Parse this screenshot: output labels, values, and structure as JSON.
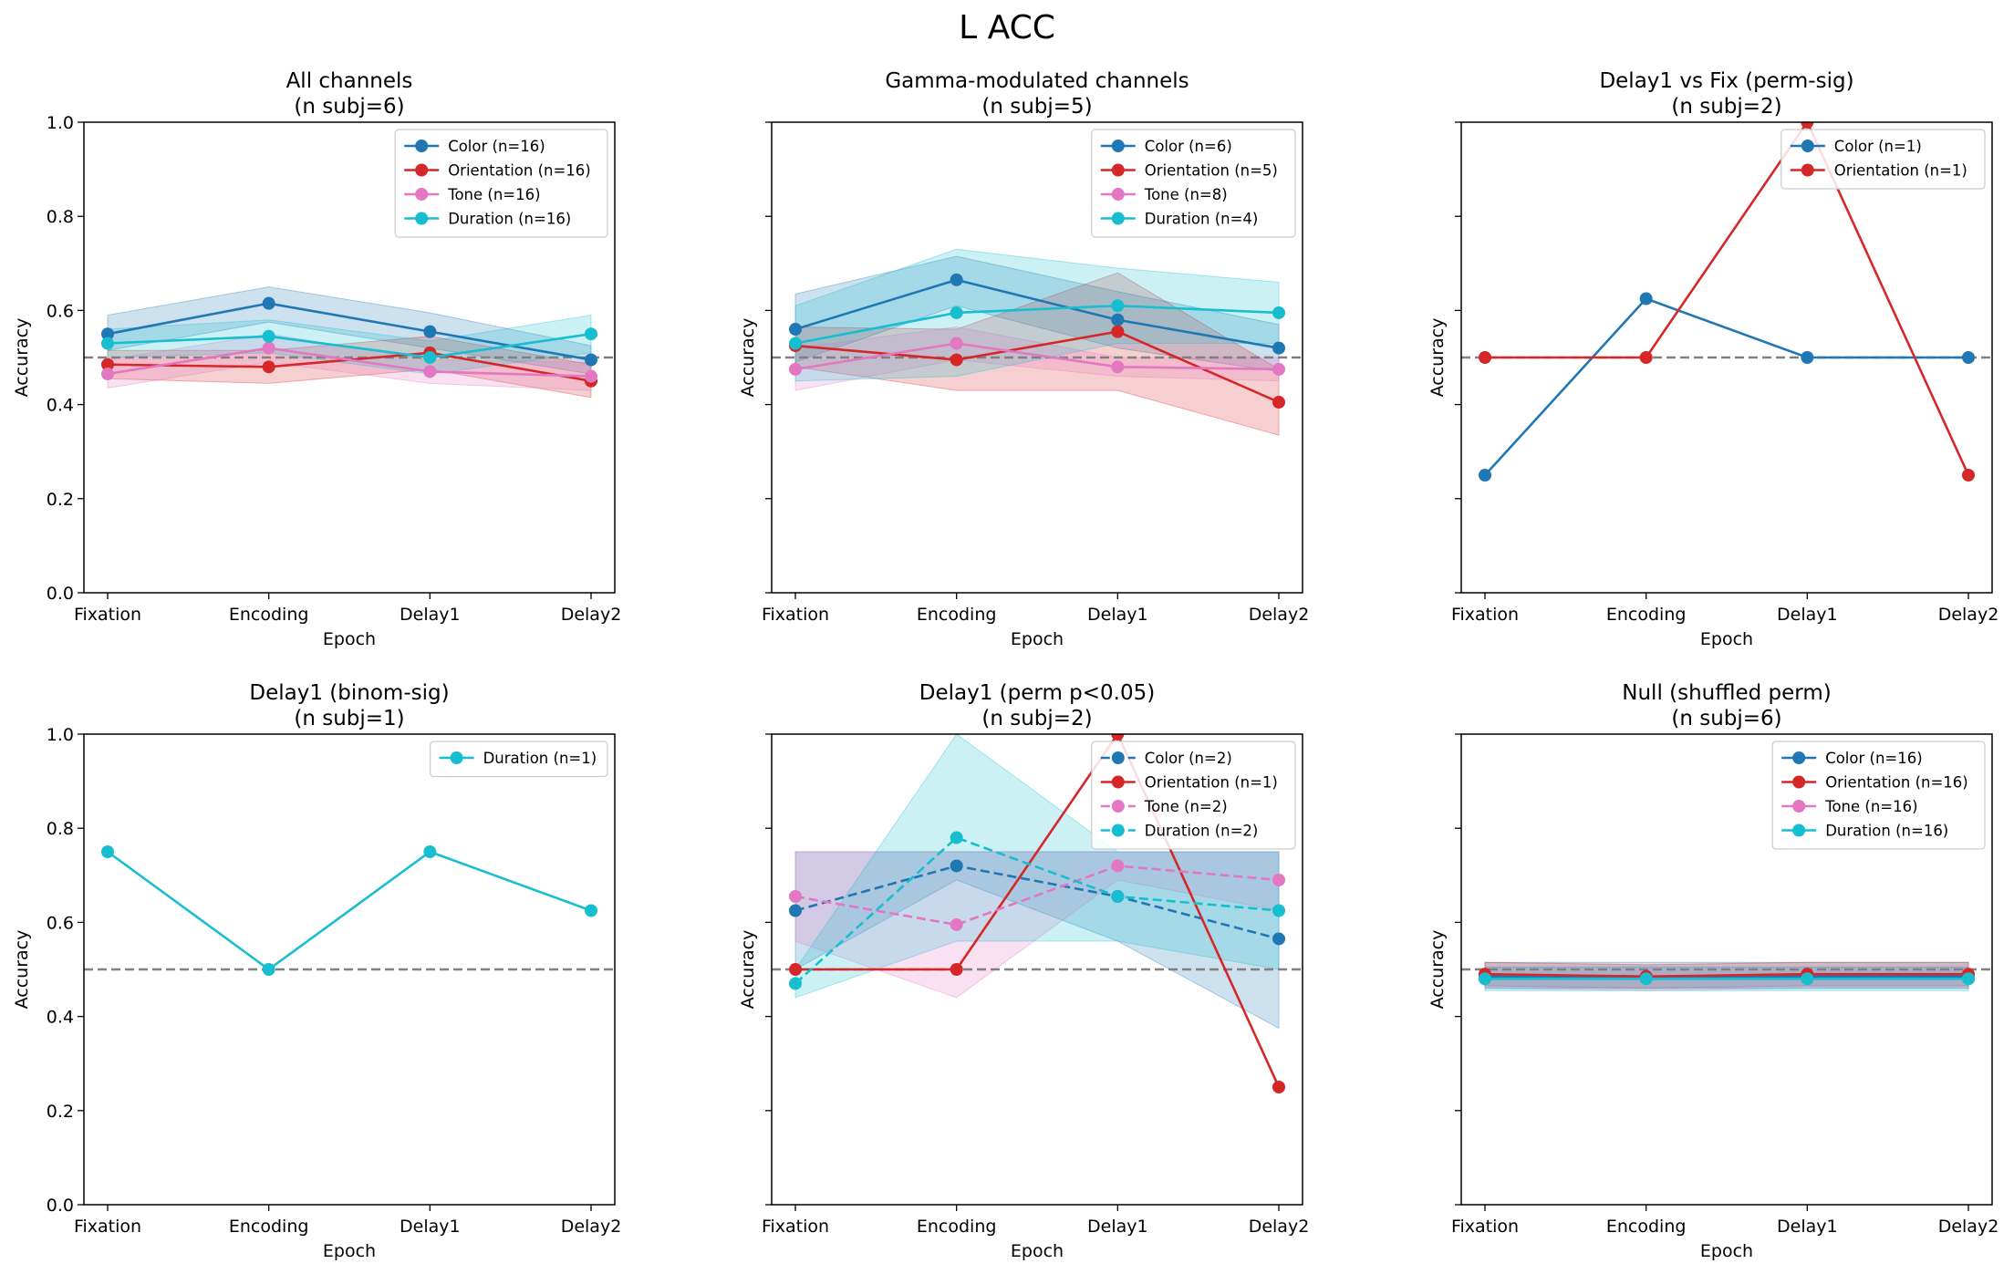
{
  "figure": {
    "suptitle": "L ACC",
    "epochs": [
      "Fixation",
      "Encoding",
      "Delay1",
      "Delay2"
    ],
    "xlabel": "Epoch",
    "ylabel": "Accuracy",
    "ylim": [
      0,
      1.0
    ],
    "yticks": [
      "0.0",
      "0.2",
      "0.4",
      "0.6",
      "0.8",
      "1.0"
    ],
    "chance_level": 0.5,
    "colors": {
      "Color": "#1f77b4",
      "Orientation": "#d62728",
      "Tone": "#e377c2",
      "Duration": "#17becf",
      "chance_line": "#808080"
    }
  },
  "chart_data": [
    {
      "type": "line",
      "title": "All channels",
      "subtitle": "(n subj=6)",
      "legend_position": "top-right",
      "categories": [
        "Fixation",
        "Encoding",
        "Delay1",
        "Delay2"
      ],
      "ylim": [
        0,
        1.0
      ],
      "show_yticklabels": true,
      "series": [
        {
          "name": "Color (n=16)",
          "key": "Color",
          "dashed": false,
          "values": [
            0.55,
            0.615,
            0.555,
            0.495
          ],
          "lower": [
            0.515,
            0.575,
            0.52,
            0.465
          ],
          "upper": [
            0.59,
            0.65,
            0.595,
            0.525
          ]
        },
        {
          "name": "Orientation (n=16)",
          "key": "Orientation",
          "dashed": false,
          "values": [
            0.485,
            0.48,
            0.51,
            0.45
          ],
          "lower": [
            0.455,
            0.445,
            0.475,
            0.415
          ],
          "upper": [
            0.515,
            0.515,
            0.545,
            0.485
          ]
        },
        {
          "name": "Tone (n=16)",
          "key": "Tone",
          "dashed": false,
          "values": [
            0.465,
            0.52,
            0.47,
            0.46
          ],
          "lower": [
            0.435,
            0.49,
            0.445,
            0.43
          ],
          "upper": [
            0.495,
            0.55,
            0.495,
            0.49
          ]
        },
        {
          "name": "Duration (n=16)",
          "key": "Duration",
          "dashed": false,
          "values": [
            0.53,
            0.545,
            0.5,
            0.55
          ],
          "lower": [
            0.5,
            0.51,
            0.465,
            0.51
          ],
          "upper": [
            0.56,
            0.58,
            0.535,
            0.59
          ]
        }
      ]
    },
    {
      "type": "line",
      "title": "Gamma-modulated channels",
      "subtitle": "(n subj=5)",
      "legend_position": "top-right",
      "categories": [
        "Fixation",
        "Encoding",
        "Delay1",
        "Delay2"
      ],
      "ylim": [
        0,
        1.0
      ],
      "show_yticklabels": false,
      "series": [
        {
          "name": "Color (n=6)",
          "key": "Color",
          "dashed": false,
          "values": [
            0.56,
            0.665,
            0.58,
            0.52
          ],
          "lower": [
            0.49,
            0.61,
            0.52,
            0.47
          ],
          "upper": [
            0.635,
            0.715,
            0.64,
            0.57
          ]
        },
        {
          "name": "Orientation (n=5)",
          "key": "Orientation",
          "dashed": false,
          "values": [
            0.525,
            0.495,
            0.555,
            0.405
          ],
          "lower": [
            0.48,
            0.43,
            0.43,
            0.335
          ],
          "upper": [
            0.565,
            0.56,
            0.68,
            0.475
          ]
        },
        {
          "name": "Tone (n=8)",
          "key": "Tone",
          "dashed": false,
          "values": [
            0.475,
            0.53,
            0.48,
            0.475
          ],
          "lower": [
            0.43,
            0.495,
            0.46,
            0.45
          ],
          "upper": [
            0.52,
            0.565,
            0.5,
            0.5
          ]
        },
        {
          "name": "Duration (n=4)",
          "key": "Duration",
          "dashed": false,
          "values": [
            0.53,
            0.595,
            0.61,
            0.595
          ],
          "lower": [
            0.45,
            0.46,
            0.53,
            0.53
          ],
          "upper": [
            0.61,
            0.73,
            0.69,
            0.66
          ]
        }
      ]
    },
    {
      "type": "line",
      "title": "Delay1 vs Fix (perm-sig)",
      "subtitle": "(n subj=2)",
      "legend_position": "top-right",
      "categories": [
        "Fixation",
        "Encoding",
        "Delay1",
        "Delay2"
      ],
      "ylim": [
        0,
        1.0
      ],
      "show_yticklabels": false,
      "series": [
        {
          "name": "Color (n=1)",
          "key": "Color",
          "dashed": false,
          "values": [
            0.25,
            0.625,
            0.5,
            0.5
          ]
        },
        {
          "name": "Orientation (n=1)",
          "key": "Orientation",
          "dashed": false,
          "values": [
            0.5,
            0.5,
            1.0,
            0.25
          ]
        }
      ]
    },
    {
      "type": "line",
      "title": "Delay1 (binom-sig)",
      "subtitle": "(n subj=1)",
      "legend_position": "top-right",
      "categories": [
        "Fixation",
        "Encoding",
        "Delay1",
        "Delay2"
      ],
      "ylim": [
        0,
        1.0
      ],
      "show_yticklabels": true,
      "series": [
        {
          "name": "Duration (n=1)",
          "key": "Duration",
          "dashed": false,
          "values": [
            0.75,
            0.5,
            0.75,
            0.625
          ]
        }
      ]
    },
    {
      "type": "line",
      "title": "Delay1 (perm p<0.05)",
      "subtitle": "(n subj=2)",
      "legend_position": "top-right",
      "categories": [
        "Fixation",
        "Encoding",
        "Delay1",
        "Delay2"
      ],
      "ylim": [
        0,
        1.0
      ],
      "show_yticklabels": false,
      "series": [
        {
          "name": "Color (n=2)",
          "key": "Color",
          "dashed": true,
          "values": [
            0.625,
            0.72,
            0.655,
            0.565
          ],
          "lower": [
            0.5,
            0.69,
            0.56,
            0.375
          ],
          "upper": [
            0.75,
            0.75,
            0.75,
            0.75
          ]
        },
        {
          "name": "Orientation (n=1)",
          "key": "Orientation",
          "dashed": false,
          "values": [
            0.5,
            0.5,
            1.0,
            0.25
          ]
        },
        {
          "name": "Tone (n=2)",
          "key": "Tone",
          "dashed": true,
          "values": [
            0.655,
            0.595,
            0.72,
            0.69
          ],
          "lower": [
            0.56,
            0.44,
            0.69,
            0.625
          ],
          "upper": [
            0.75,
            0.75,
            0.75,
            0.75
          ]
        },
        {
          "name": "Duration (n=2)",
          "key": "Duration",
          "dashed": true,
          "values": [
            0.47,
            0.78,
            0.655,
            0.625
          ],
          "lower": [
            0.44,
            0.56,
            0.56,
            0.5
          ],
          "upper": [
            0.5,
            1.0,
            0.75,
            0.75
          ]
        }
      ]
    },
    {
      "type": "line",
      "title": "Null (shuffled perm)",
      "subtitle": "(n subj=6)",
      "legend_position": "top-right",
      "categories": [
        "Fixation",
        "Encoding",
        "Delay1",
        "Delay2"
      ],
      "ylim": [
        0,
        1.0
      ],
      "show_yticklabels": false,
      "series": [
        {
          "name": "Color (n=16)",
          "key": "Color",
          "dashed": false,
          "values": [
            0.485,
            0.485,
            0.485,
            0.485
          ],
          "lower": [
            0.46,
            0.46,
            0.46,
            0.46
          ],
          "upper": [
            0.515,
            0.515,
            0.515,
            0.515
          ]
        },
        {
          "name": "Orientation (n=16)",
          "key": "Orientation",
          "dashed": false,
          "values": [
            0.49,
            0.485,
            0.49,
            0.49
          ],
          "lower": [
            0.465,
            0.46,
            0.465,
            0.465
          ],
          "upper": [
            0.515,
            0.51,
            0.515,
            0.515
          ]
        },
        {
          "name": "Tone (n=16)",
          "key": "Tone",
          "dashed": false,
          "values": [
            0.48,
            0.48,
            0.48,
            0.48
          ],
          "lower": [
            0.46,
            0.455,
            0.46,
            0.46
          ],
          "upper": [
            0.505,
            0.505,
            0.505,
            0.505
          ]
        },
        {
          "name": "Duration (n=16)",
          "key": "Duration",
          "dashed": false,
          "values": [
            0.48,
            0.48,
            0.48,
            0.48
          ],
          "lower": [
            0.455,
            0.455,
            0.455,
            0.455
          ],
          "upper": [
            0.505,
            0.505,
            0.505,
            0.505
          ]
        }
      ]
    }
  ]
}
